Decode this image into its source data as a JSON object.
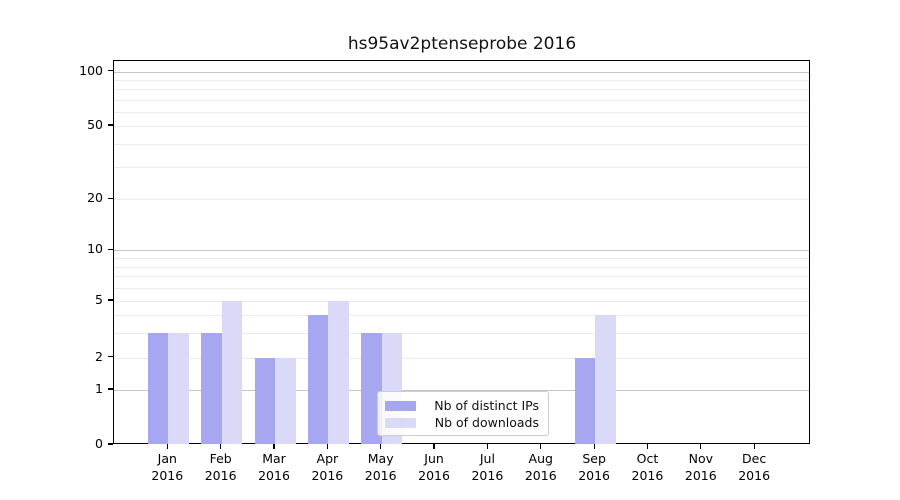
{
  "chart_data": {
    "type": "bar",
    "title": "hs95av2ptenseprobe 2016",
    "categories": [
      "Jan",
      "Feb",
      "Mar",
      "Apr",
      "May",
      "Jun",
      "Jul",
      "Aug",
      "Sep",
      "Oct",
      "Nov",
      "Dec"
    ],
    "category_year": "2016",
    "series": [
      {
        "name": "Nb of distinct IPs",
        "color": "#a6a6f1",
        "values": [
          3,
          3,
          2,
          4,
          3,
          0,
          0,
          0,
          2,
          0,
          0,
          0
        ]
      },
      {
        "name": "Nb of downloads",
        "color": "#dadaf8",
        "values": [
          3,
          5,
          2,
          5,
          3,
          0,
          0,
          0,
          4,
          0,
          0,
          0
        ]
      }
    ],
    "yticks": [
      100,
      50,
      20,
      10,
      5,
      2,
      1,
      0
    ],
    "yscale": "symlog",
    "ylim": [
      0,
      100
    ],
    "grid": true,
    "legend_position": "lower-center",
    "colors": {
      "major_gridline": "#c6c6c6",
      "minor_gridline": "#ebebeb",
      "spine": "#000000",
      "background": "#ffffff"
    }
  }
}
